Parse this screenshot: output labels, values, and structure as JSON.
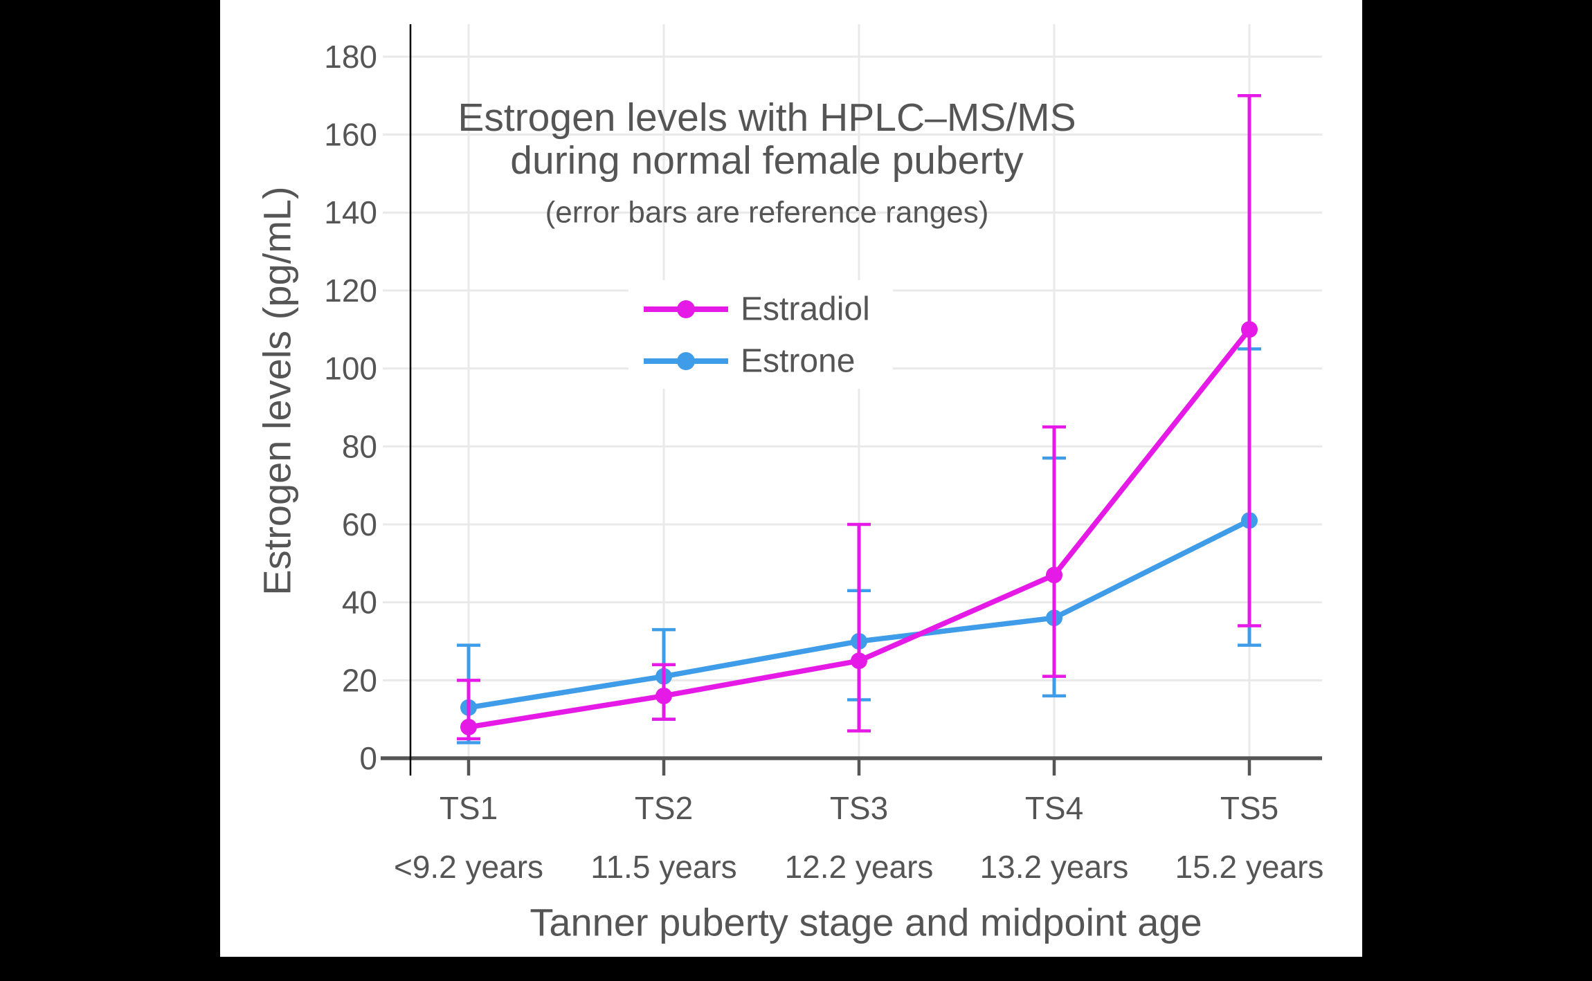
{
  "page": {
    "background": "#000000",
    "canvas_background": "#ffffff"
  },
  "colors": {
    "text": "#555555",
    "grid": "#E9E9E9",
    "axis": "#555555",
    "spine": "#000000",
    "estradiol": "#E61AE6",
    "estrone": "#3E9CE9"
  },
  "chart_data": {
    "type": "line",
    "title": "Estrogen levels with HPLC–MS/MS during normal female puberty",
    "title_lines": [
      "Estrogen levels with HPLC–MS/MS",
      "during normal female puberty"
    ],
    "subtitle": "(error bars are reference ranges)",
    "xlabel": "Tanner puberty stage and midpoint age",
    "ylabel": "Estrogen levels (pg/mL)",
    "categories": [
      "TS1",
      "TS2",
      "TS3",
      "TS4",
      "TS5"
    ],
    "category_sublabels": [
      "<9.2 years",
      "11.5 years",
      "12.2 years",
      "13.2 years",
      "15.2 years"
    ],
    "yticks": [
      0,
      20,
      40,
      60,
      80,
      100,
      120,
      140,
      160,
      180
    ],
    "ylim": [
      0,
      180
    ],
    "grid": true,
    "legend_position": "inside-upper-center",
    "series": [
      {
        "name": "Estradiol",
        "color": "#E61AE6",
        "values": [
          8,
          16,
          25,
          47,
          110
        ],
        "range_low": [
          5,
          10,
          7,
          21,
          34
        ],
        "range_high": [
          20,
          24,
          60,
          85,
          170
        ]
      },
      {
        "name": "Estrone",
        "color": "#3E9CE9",
        "values": [
          13,
          21,
          30,
          36,
          61
        ],
        "range_low": [
          4,
          10,
          15,
          16,
          29
        ],
        "range_high": [
          29,
          33,
          43,
          77,
          105
        ]
      }
    ]
  }
}
